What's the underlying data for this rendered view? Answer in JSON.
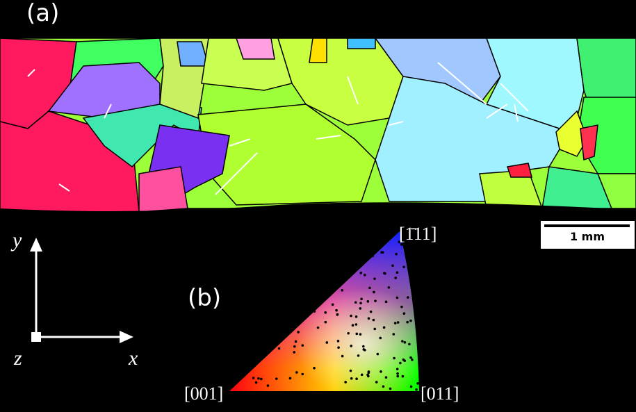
{
  "panels": {
    "a": {
      "label": "(a)",
      "scale_bar": "1 mm"
    },
    "b": {
      "label": "(b)",
      "corners": [
        "[001]",
        "[011]",
        "[1̄11]"
      ]
    }
  },
  "axes": {
    "y": "y",
    "x": "x",
    "z": "z"
  }
}
